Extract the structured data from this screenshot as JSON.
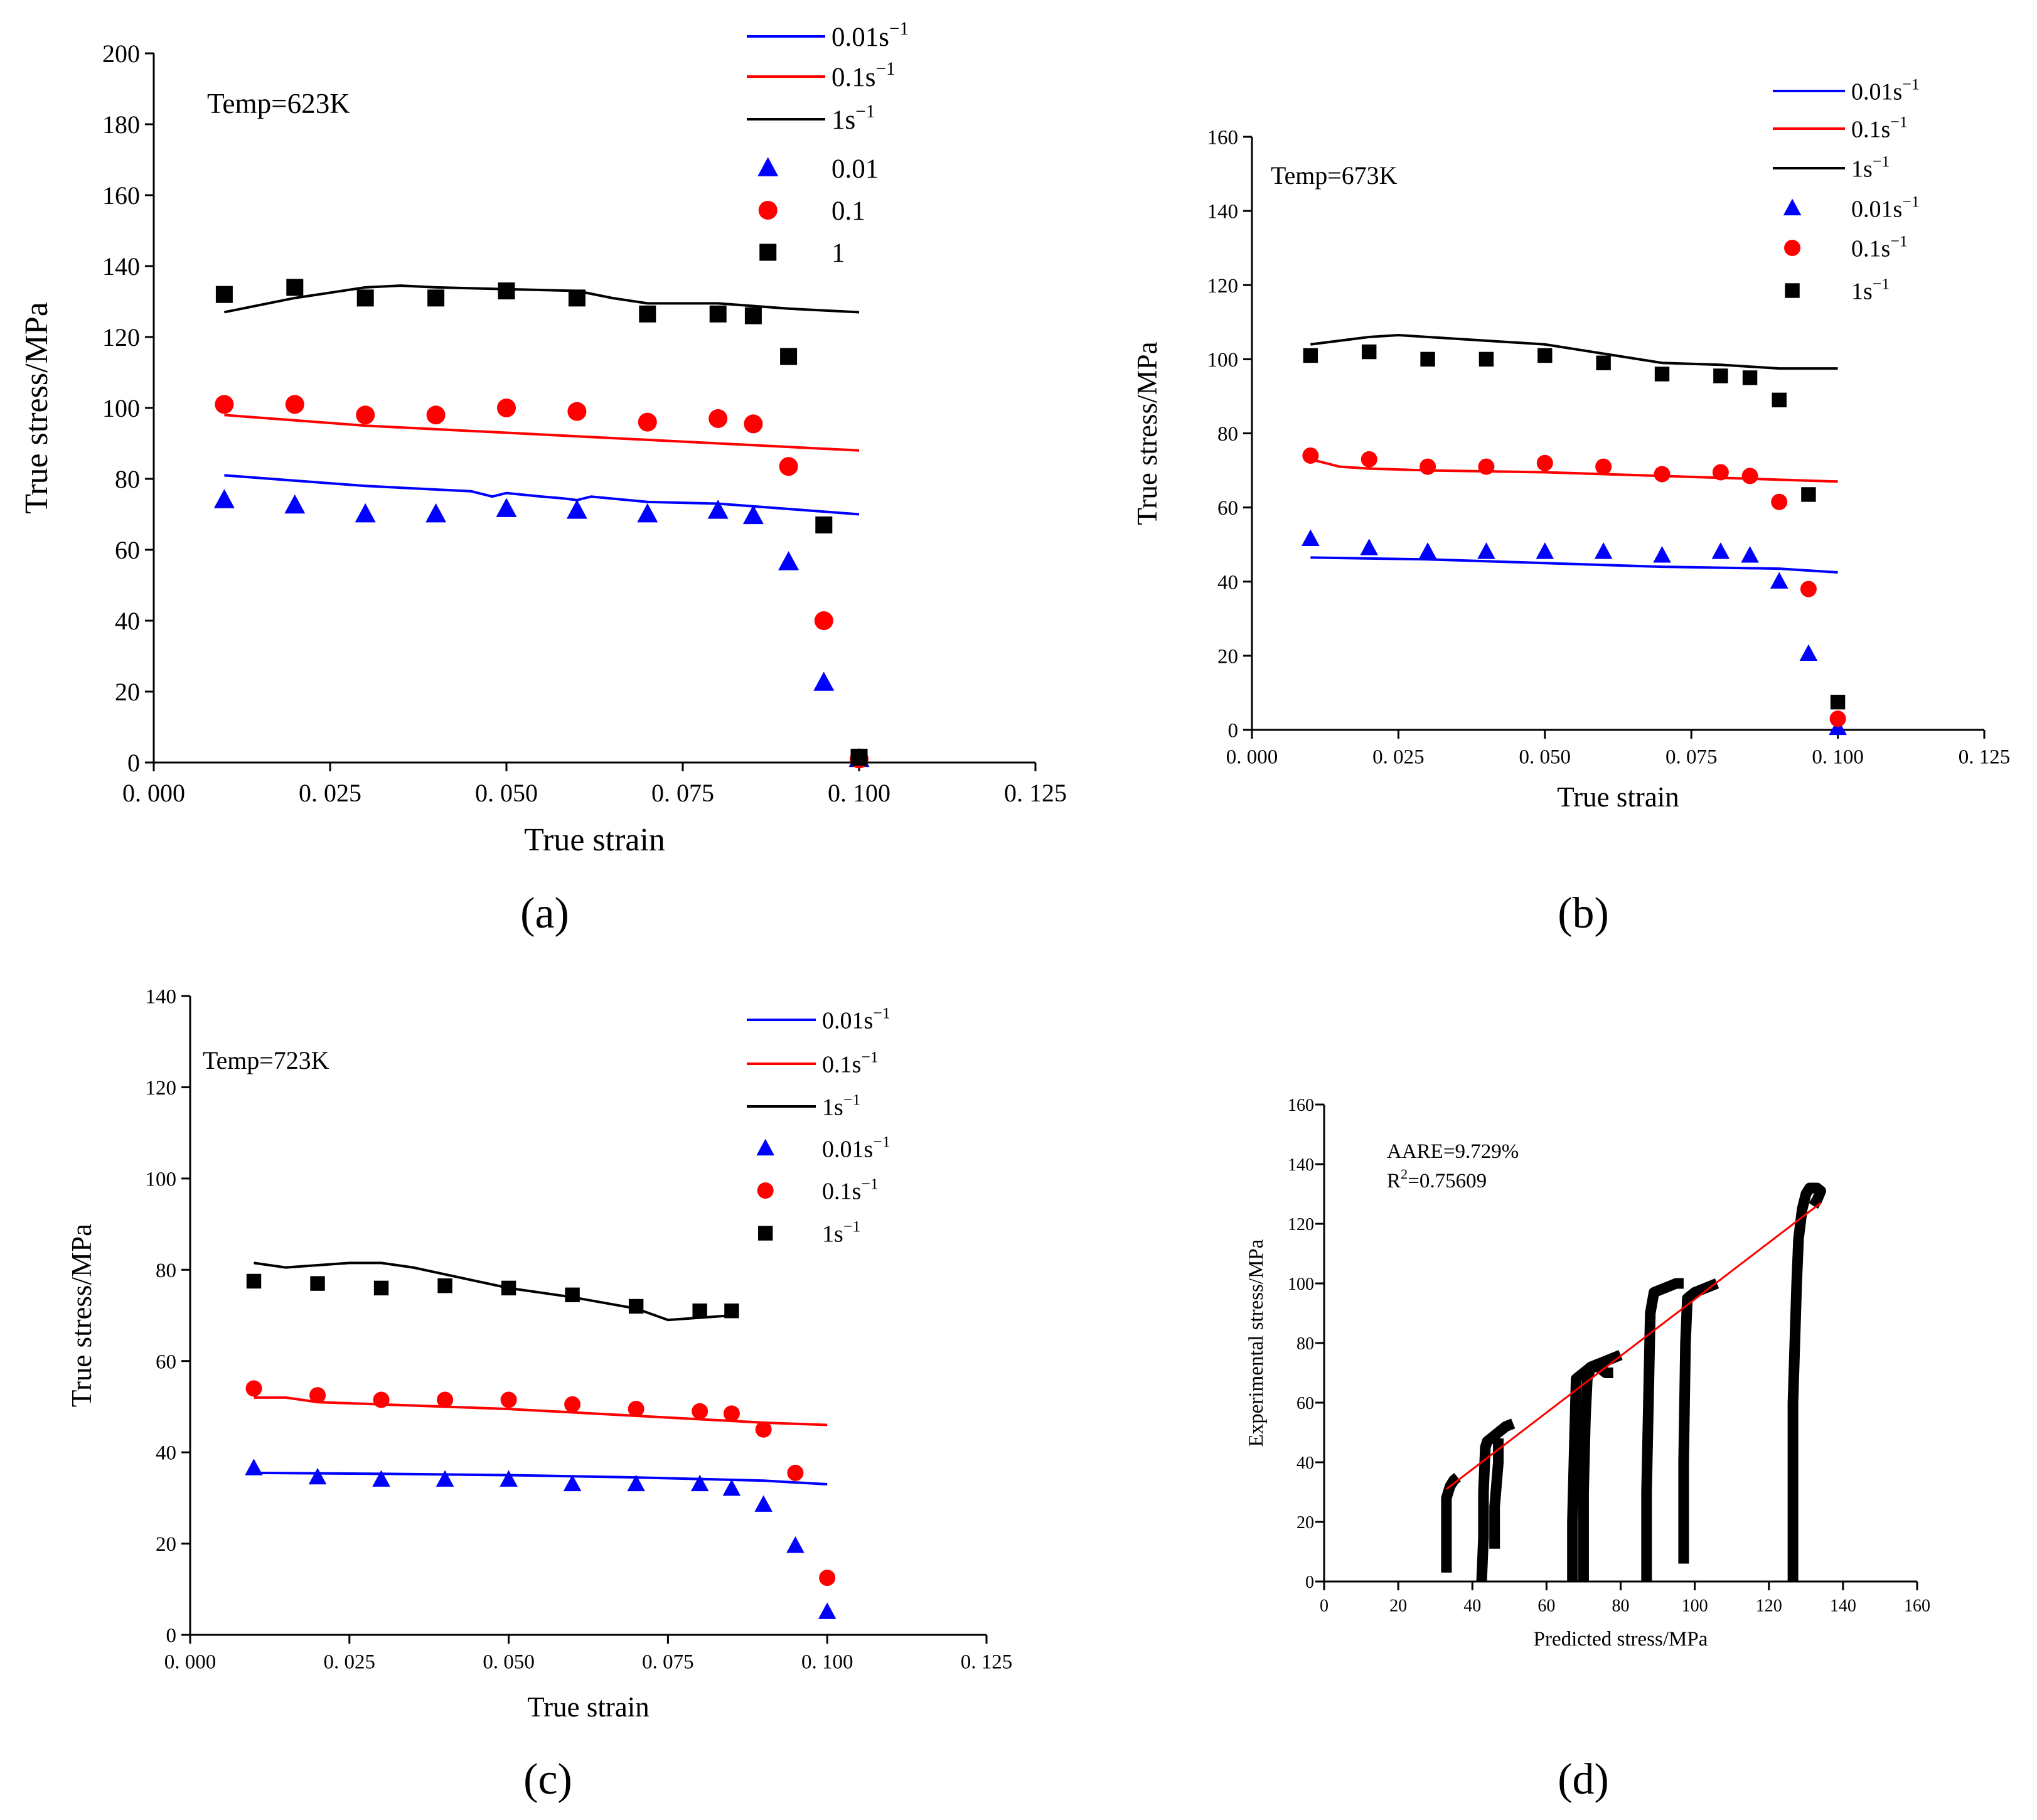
{
  "colors": {
    "blue": "#0000ff",
    "red": "#ff0000",
    "black": "#000000",
    "fit": "#ff0000"
  },
  "chart_data": [
    {
      "id": "a",
      "type": "scatter+line",
      "panel_label": "(a)",
      "annotation": "Temp=623K",
      "xlabel": "True strain",
      "ylabel": "True stress/MPa",
      "xlim": [
        0,
        0.125
      ],
      "ylim": [
        0,
        200
      ],
      "xticks": [
        "0. 000",
        "0. 025",
        "0. 050",
        "0. 075",
        "0. 100",
        "0. 125"
      ],
      "yticks": [
        "0",
        "20",
        "40",
        "60",
        "80",
        "100",
        "120",
        "140",
        "160",
        "180",
        "200"
      ],
      "legend_position": "top-right",
      "legend_lines": [
        {
          "base": "0.01s",
          "sup": "−1",
          "color": "blue"
        },
        {
          "base": "0.1s",
          "sup": "−1",
          "color": "red"
        },
        {
          "base": "1s",
          "sup": "−1",
          "color": "black"
        }
      ],
      "legend_markers": [
        {
          "base": "0.01",
          "sup": "",
          "marker": "triangle",
          "color": "blue"
        },
        {
          "base": "0.1",
          "sup": "",
          "marker": "circle",
          "color": "red"
        },
        {
          "base": "1",
          "sup": "",
          "marker": "square",
          "color": "black"
        }
      ],
      "lines": [
        {
          "name": "0.01s⁻¹ model",
          "color": "blue",
          "x": [
            0.01,
            0.02,
            0.03,
            0.04,
            0.045,
            0.048,
            0.05,
            0.055,
            0.058,
            0.06,
            0.062,
            0.07,
            0.08,
            0.09,
            0.1
          ],
          "y": [
            81,
            79.5,
            78,
            77,
            76.5,
            75,
            76,
            75,
            74.5,
            74,
            75,
            73.5,
            73,
            71.5,
            70
          ]
        },
        {
          "name": "0.1s⁻¹ model",
          "color": "red",
          "x": [
            0.01,
            0.02,
            0.03,
            0.04,
            0.05,
            0.06,
            0.07,
            0.08,
            0.09,
            0.1
          ],
          "y": [
            98,
            96.5,
            95,
            94,
            93,
            92,
            91,
            90,
            89,
            88
          ]
        },
        {
          "name": "1s⁻¹ model",
          "color": "black",
          "x": [
            0.01,
            0.02,
            0.03,
            0.035,
            0.04,
            0.05,
            0.06,
            0.065,
            0.07,
            0.075,
            0.08,
            0.09,
            0.1
          ],
          "y": [
            127,
            131,
            134,
            134.5,
            134,
            133.5,
            133,
            131,
            129.5,
            129.5,
            129.5,
            128,
            127
          ]
        }
      ],
      "points": [
        {
          "name": "0.01",
          "marker": "triangle",
          "color": "blue",
          "x": [
            0.01,
            0.02,
            0.03,
            0.04,
            0.05,
            0.06,
            0.07,
            0.08,
            0.085,
            0.09,
            0.095,
            0.1
          ],
          "y": [
            74,
            72.5,
            70,
            70,
            71.5,
            71,
            70,
            71,
            69.5,
            56.5,
            22.5,
            1
          ]
        },
        {
          "name": "0.1",
          "marker": "circle",
          "color": "red",
          "x": [
            0.01,
            0.02,
            0.03,
            0.04,
            0.05,
            0.06,
            0.07,
            0.08,
            0.085,
            0.09,
            0.095,
            0.1
          ],
          "y": [
            101,
            101,
            98,
            98,
            100,
            99,
            96,
            97,
            95.5,
            83.5,
            40,
            1
          ]
        },
        {
          "name": "1",
          "marker": "square",
          "color": "black",
          "x": [
            0.01,
            0.02,
            0.03,
            0.04,
            0.05,
            0.06,
            0.07,
            0.08,
            0.085,
            0.09,
            0.095,
            0.1
          ],
          "y": [
            132,
            134,
            131,
            131,
            133,
            131,
            126.5,
            126.5,
            126,
            114.5,
            67,
            1.5
          ]
        }
      ]
    },
    {
      "id": "b",
      "type": "scatter+line",
      "panel_label": "(b)",
      "annotation": "Temp=673K",
      "xlabel": "True strain",
      "ylabel": "True stress/MPa",
      "xlim": [
        0,
        0.125
      ],
      "ylim": [
        0,
        160
      ],
      "xticks": [
        "0. 000",
        "0. 025",
        "0. 050",
        "0. 075",
        "0. 100",
        "0. 125"
      ],
      "yticks": [
        "0",
        "20",
        "40",
        "60",
        "80",
        "100",
        "120",
        "140",
        "160"
      ],
      "legend_position": "top-right",
      "legend_lines": [
        {
          "base": "0.01s",
          "sup": "−1",
          "color": "blue"
        },
        {
          "base": "0.1s",
          "sup": "−1",
          "color": "red"
        },
        {
          "base": "1s",
          "sup": "−1",
          "color": "black"
        }
      ],
      "legend_markers": [
        {
          "base": "0.01s",
          "sup": "−1",
          "marker": "triangle",
          "color": "blue"
        },
        {
          "base": "0.1s",
          "sup": "−1",
          "marker": "circle",
          "color": "red"
        },
        {
          "base": "1s",
          "sup": "−1",
          "marker": "square",
          "color": "black"
        }
      ],
      "lines": [
        {
          "name": "0.01s⁻¹ model",
          "color": "blue",
          "x": [
            0.01,
            0.03,
            0.05,
            0.07,
            0.09,
            0.1
          ],
          "y": [
            46.5,
            46,
            45,
            44,
            43.5,
            42.5
          ]
        },
        {
          "name": "0.1s⁻¹ model",
          "color": "red",
          "x": [
            0.01,
            0.015,
            0.02,
            0.03,
            0.05,
            0.07,
            0.09,
            0.1
          ],
          "y": [
            73,
            71,
            70.5,
            70,
            69.5,
            68.5,
            67.5,
            67
          ]
        },
        {
          "name": "1s⁻¹ model",
          "color": "black",
          "x": [
            0.01,
            0.02,
            0.025,
            0.03,
            0.04,
            0.05,
            0.06,
            0.07,
            0.08,
            0.09,
            0.1
          ],
          "y": [
            104,
            106,
            106.5,
            106,
            105,
            104,
            101.5,
            99,
            98.5,
            97.5,
            97.5
          ]
        }
      ],
      "points": [
        {
          "name": "0.01s⁻¹",
          "marker": "triangle",
          "color": "blue",
          "x": [
            0.01,
            0.02,
            0.03,
            0.04,
            0.05,
            0.06,
            0.07,
            0.08,
            0.085,
            0.09,
            0.095,
            0.1
          ],
          "y": [
            51.5,
            49,
            48,
            48,
            48,
            48,
            47,
            48,
            47,
            40,
            20.5,
            0.5
          ]
        },
        {
          "name": "0.1s⁻¹",
          "marker": "circle",
          "color": "red",
          "x": [
            0.01,
            0.02,
            0.03,
            0.04,
            0.05,
            0.06,
            0.07,
            0.08,
            0.085,
            0.09,
            0.095,
            0.1
          ],
          "y": [
            74,
            73,
            71,
            71,
            72,
            71,
            69,
            69.5,
            68.5,
            61.5,
            38,
            3
          ]
        },
        {
          "name": "1s⁻¹",
          "marker": "square",
          "color": "black",
          "x": [
            0.01,
            0.02,
            0.03,
            0.04,
            0.05,
            0.06,
            0.07,
            0.08,
            0.085,
            0.09,
            0.095,
            0.1
          ],
          "y": [
            101,
            102,
            100,
            100,
            101,
            99,
            96,
            95.5,
            95,
            89,
            63.5,
            7.5
          ]
        }
      ]
    },
    {
      "id": "c",
      "type": "scatter+line",
      "panel_label": "(c)",
      "annotation": "Temp=723K",
      "xlabel": "True strain",
      "ylabel": "True stress/MPa",
      "xlim": [
        0,
        0.125
      ],
      "ylim": [
        0,
        140
      ],
      "xticks": [
        "0. 000",
        "0. 025",
        "0. 050",
        "0. 075",
        "0. 100",
        "0. 125"
      ],
      "yticks": [
        "0",
        "20",
        "40",
        "60",
        "80",
        "100",
        "120",
        "140"
      ],
      "legend_position": "top-right",
      "legend_lines": [
        {
          "base": "0.01s",
          "sup": "−1",
          "color": "blue"
        },
        {
          "base": "0.1s",
          "sup": "−1",
          "color": "red"
        },
        {
          "base": "1s",
          "sup": "−1",
          "color": "black"
        }
      ],
      "legend_markers": [
        {
          "base": "0.01s",
          "sup": "−1",
          "marker": "triangle",
          "color": "blue"
        },
        {
          "base": "0.1s",
          "sup": "−1",
          "marker": "circle",
          "color": "red"
        },
        {
          "base": "1s",
          "sup": "−1",
          "marker": "square",
          "color": "black"
        }
      ],
      "lines": [
        {
          "name": "0.01s⁻¹ model",
          "color": "blue",
          "x": [
            0.01,
            0.03,
            0.05,
            0.07,
            0.09,
            0.1
          ],
          "y": [
            35.5,
            35.3,
            35,
            34.5,
            33.8,
            33
          ]
        },
        {
          "name": "0.1s⁻¹ model",
          "color": "red",
          "x": [
            0.01,
            0.015,
            0.02,
            0.03,
            0.05,
            0.07,
            0.09,
            0.1
          ],
          "y": [
            52,
            52,
            51,
            50.5,
            49.5,
            48,
            46.5,
            46
          ]
        },
        {
          "name": "1s⁻¹ model",
          "color": "black",
          "x": [
            0.01,
            0.015,
            0.02,
            0.025,
            0.03,
            0.035,
            0.04,
            0.05,
            0.06,
            0.07,
            0.075,
            0.08,
            0.085
          ],
          "y": [
            81.5,
            80.5,
            81,
            81.5,
            81.5,
            80.5,
            79,
            76,
            74,
            71.5,
            69,
            69.5,
            70
          ]
        }
      ],
      "points": [
        {
          "name": "0.01s⁻¹",
          "marker": "triangle",
          "color": "blue",
          "x": [
            0.01,
            0.02,
            0.03,
            0.04,
            0.05,
            0.06,
            0.07,
            0.08,
            0.085,
            0.09,
            0.095,
            0.1
          ],
          "y": [
            36.5,
            34.5,
            34,
            34,
            34,
            33,
            33,
            33,
            32,
            28.5,
            19.5,
            5
          ]
        },
        {
          "name": "0.1s⁻¹",
          "marker": "circle",
          "color": "red",
          "x": [
            0.01,
            0.02,
            0.03,
            0.04,
            0.05,
            0.06,
            0.07,
            0.08,
            0.085,
            0.09,
            0.095,
            0.1
          ],
          "y": [
            54,
            52.5,
            51.5,
            51.5,
            51.5,
            50.5,
            49.5,
            49,
            48.5,
            45,
            35.5,
            12.5
          ]
        },
        {
          "name": "1s⁻¹",
          "marker": "square",
          "color": "black",
          "x": [
            0.01,
            0.02,
            0.03,
            0.04,
            0.05,
            0.06,
            0.07,
            0.08,
            0.085
          ],
          "y": [
            77.5,
            77,
            76,
            76.5,
            76,
            74.5,
            72,
            71,
            71
          ]
        }
      ]
    },
    {
      "id": "d",
      "type": "scatter",
      "panel_label": "(d)",
      "annotation": "AARE=9.729%",
      "annotation2_base": "R",
      "annotation2_sup": "2",
      "annotation2_rest": "=0.75609",
      "xlabel": "Predicted stress/MPa",
      "ylabel": "Experimental stress/MPa",
      "xlim": [
        0,
        160
      ],
      "ylim": [
        0,
        160
      ],
      "xticks": [
        "0",
        "20",
        "40",
        "60",
        "80",
        "100",
        "120",
        "140",
        "160"
      ],
      "yticks": [
        "0",
        "20",
        "40",
        "60",
        "80",
        "100",
        "120",
        "140",
        "160"
      ],
      "fit_line": {
        "x": [
          33,
          134
        ],
        "y": [
          31,
          127
        ]
      },
      "clusters": [
        {
          "x": [
            33,
            33,
            33,
            34,
            35,
            36
          ],
          "y": [
            3,
            15,
            28,
            32,
            34,
            35
          ]
        },
        {
          "x": [
            42.5,
            43,
            43,
            43.5,
            44,
            45,
            47,
            49,
            51
          ],
          "y": [
            0,
            15,
            30,
            45,
            47,
            48,
            50,
            52,
            53
          ]
        },
        {
          "x": [
            46,
            46,
            47,
            47
          ],
          "y": [
            11,
            25,
            40,
            48
          ]
        },
        {
          "x": [
            67,
            67,
            67.5,
            68,
            70,
            72,
            74,
            76,
            78,
            80
          ],
          "y": [
            0,
            20,
            45,
            68,
            70,
            72,
            73,
            74,
            75,
            76
          ]
        },
        {
          "x": [
            70,
            70,
            70.5,
            71,
            72,
            74,
            76,
            78
          ],
          "y": [
            0,
            30,
            55,
            68,
            72,
            72,
            70,
            70
          ]
        },
        {
          "x": [
            87,
            87,
            87.5,
            88,
            89,
            91,
            93,
            95,
            97
          ],
          "y": [
            0,
            30,
            60,
            90,
            97,
            98,
            99,
            100,
            100
          ]
        },
        {
          "x": [
            97,
            97,
            97.5,
            98,
            100,
            102,
            104,
            106
          ],
          "y": [
            6,
            40,
            80,
            95,
            97,
            98,
            99,
            100
          ]
        },
        {
          "x": [
            126.5,
            126.5,
            126.5,
            126.5,
            127,
            127.5,
            128,
            129,
            130,
            131,
            132,
            133,
            134,
            133,
            132
          ],
          "y": [
            0,
            20,
            40,
            60,
            80,
            100,
            115,
            125,
            130,
            132,
            132,
            132,
            131,
            128,
            126
          ]
        }
      ]
    }
  ]
}
